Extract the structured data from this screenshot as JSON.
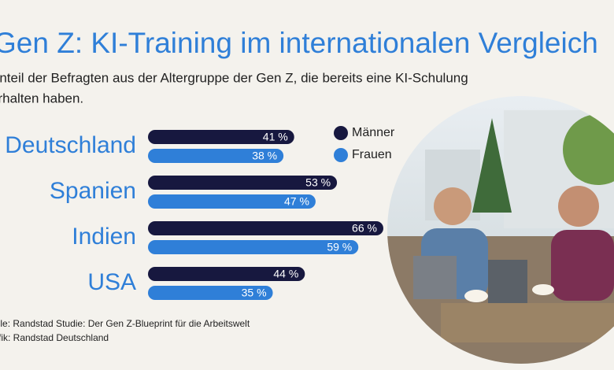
{
  "chart_data": {
    "type": "bar",
    "orientation": "horizontal",
    "title": "Gen Z: KI-Training im internationalen Vergleich",
    "subtitle": [
      "Anteil der Befragten aus der Altergruppe der Gen Z, die bereits eine KI-Schulung",
      "erhalten haben."
    ],
    "categories": [
      "Deutschland",
      "Spanien",
      "Indien",
      "USA"
    ],
    "series": [
      {
        "name": "Männer",
        "color": "#17183f",
        "values": [
          41,
          53,
          66,
          44
        ],
        "value_labels": [
          "41 %",
          "53 %",
          "66 %",
          "44 %"
        ]
      },
      {
        "name": "Frauen",
        "color": "#2f7fd8",
        "values": [
          38,
          47,
          59,
          35
        ],
        "value_labels": [
          "38 %",
          "47 %",
          "59 %",
          "35 %"
        ]
      }
    ],
    "source": [
      "Quelle: Randstad Studie: Der Gen Z-Blueprint für die Arbeitswelt",
      "Grafik: Randstad Deutschland"
    ]
  }
}
